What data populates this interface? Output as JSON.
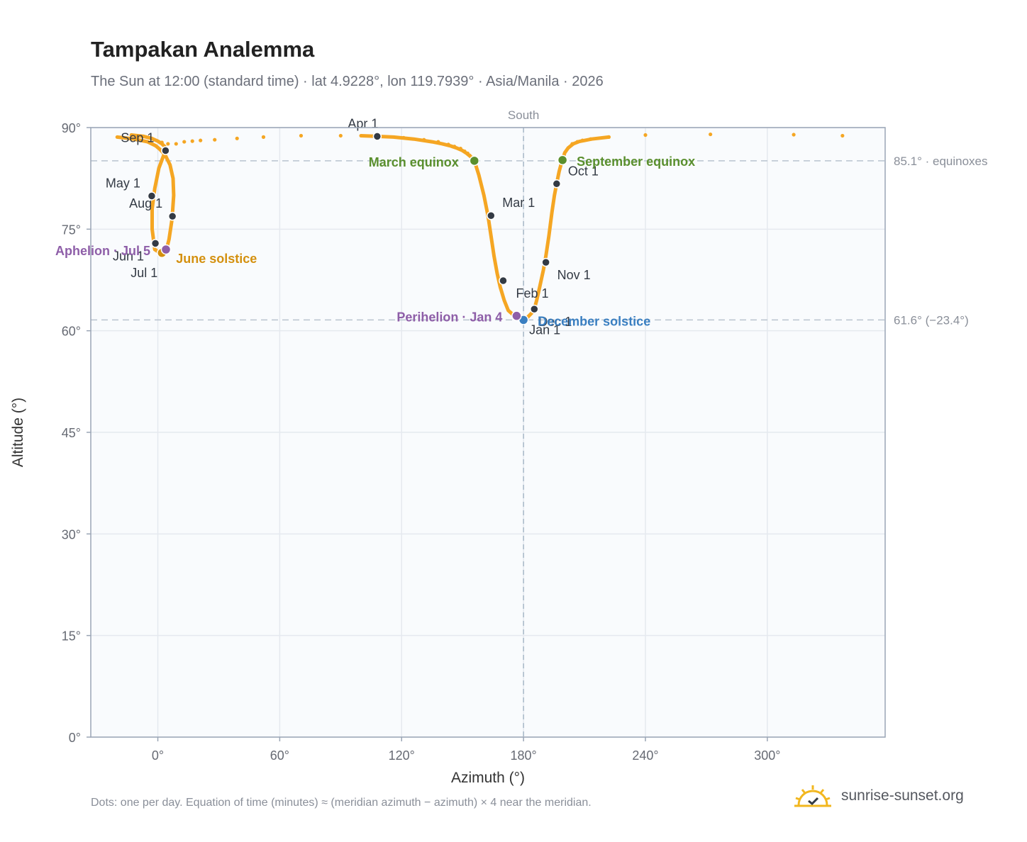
{
  "title": "Tampakan Analemma",
  "subtitle": "The Sun at 12:00 (standard time) · lat 4.9228°, lon 119.7939° · Asia/Manila · 2026",
  "footnote": "Dots: one per day. Equation of time (minutes) ≈ (meridian azimuth − azimuth) × 4 near the meridian.",
  "brand": {
    "name": "sunrise-sunset.org",
    "logo_icon": "sun-logo-icon"
  },
  "colors": {
    "analemma": "#f5a623",
    "month_dot": "#333a44",
    "equinox": "#5a8f2e",
    "june_solstice": "#d4900f",
    "december_solstice": "#3a7fc1",
    "apsis": "#8e5ea8",
    "plot_bg": "#f9fbfd",
    "grid": "#e5e9ef"
  },
  "chart_data": {
    "type": "scatter",
    "title": "Tampakan Analemma",
    "xlabel": "Azimuth (°)",
    "ylabel": "Altitude (°)",
    "xlim": [
      -33,
      358
    ],
    "ylim": [
      0,
      90
    ],
    "xticks": [
      0,
      60,
      120,
      180,
      240,
      300
    ],
    "xtick_labels": [
      "0°",
      "60°",
      "120°",
      "180°",
      "240°",
      "300°"
    ],
    "yticks": [
      0,
      15,
      30,
      45,
      60,
      75,
      90
    ],
    "ytick_labels": [
      "0°",
      "15°",
      "30°",
      "45°",
      "60°",
      "75°",
      "90°"
    ],
    "grid": true,
    "meridian": {
      "azimuth": 180,
      "label": "South"
    },
    "reference_lines": [
      {
        "altitude": 85.1,
        "label": "85.1° · equinoxes"
      },
      {
        "altitude": 61.6,
        "label": "61.6° (−23.4°)"
      }
    ],
    "analemma_path": [
      [
        180.0,
        61.6
      ],
      [
        182.0,
        62.0
      ],
      [
        184.0,
        62.6
      ],
      [
        185.3,
        63.2
      ],
      [
        186.5,
        64.5
      ],
      [
        188.0,
        66.5
      ],
      [
        189.8,
        69.0
      ],
      [
        191.0,
        71.0
      ],
      [
        192.5,
        74.0
      ],
      [
        194.0,
        77.5
      ],
      [
        195.2,
        80.0
      ],
      [
        196.3,
        81.7
      ],
      [
        197.5,
        83.5
      ],
      [
        198.5,
        84.6
      ],
      [
        199.2,
        85.2
      ],
      [
        200.3,
        86.3
      ],
      [
        202.0,
        87.0
      ],
      [
        204.5,
        87.6
      ],
      [
        207.5,
        87.95
      ],
      [
        210.0,
        88.1
      ],
      [
        213.5,
        88.3
      ],
      [
        222.0,
        88.6
      ],
      [
        240.0,
        88.9
      ],
      [
        272.0,
        89.0
      ],
      [
        313.0,
        88.95
      ],
      [
        337.0,
        88.8
      ],
      [
        357.0,
        88.6
      ],
      [
        -33.0,
        88.6
      ],
      [
        -13.0,
        88.9
      ],
      [
        -7.0,
        88.7
      ],
      [
        -3.0,
        88.4
      ],
      [
        0.0,
        88.0
      ],
      [
        2.0,
        87.6
      ],
      [
        3.4,
        87.2
      ],
      [
        3.8,
        86.8
      ],
      [
        3.0,
        86.0
      ],
      [
        0.5,
        84.0
      ],
      [
        -1.5,
        81.0
      ],
      [
        -2.8,
        78.0
      ],
      [
        -2.8,
        75.0
      ],
      [
        -1.5,
        72.0
      ],
      [
        0.5,
        71.6
      ],
      [
        2.0,
        71.5
      ],
      [
        4.0,
        71.7
      ],
      [
        5.5,
        73.5
      ],
      [
        7.0,
        76.5
      ],
      [
        7.8,
        80.0
      ],
      [
        7.5,
        82.5
      ],
      [
        6.0,
        84.5
      ],
      [
        3.5,
        86.0
      ],
      [
        1.0,
        86.8
      ],
      [
        -1.0,
        87.3
      ],
      [
        -5.0,
        87.9
      ],
      [
        -10.0,
        88.2
      ],
      [
        -14.0,
        88.4
      ],
      [
        -20.0,
        88.6
      ],
      [
        358.0,
        88.7
      ],
      [
        330.0,
        88.7
      ],
      [
        300.0,
        88.8
      ],
      [
        260.0,
        88.8
      ],
      [
        100.0,
        88.8
      ],
      [
        108.0,
        88.7
      ],
      [
        116.0,
        88.6
      ],
      [
        126.0,
        88.3
      ],
      [
        135.0,
        87.9
      ],
      [
        140.0,
        87.6
      ],
      [
        144.0,
        87.3
      ],
      [
        147.0,
        87.0
      ],
      [
        150.0,
        86.6
      ],
      [
        152.0,
        86.2
      ],
      [
        154.0,
        85.7
      ],
      [
        155.8,
        85.1
      ],
      [
        158.0,
        83.0
      ],
      [
        160.5,
        80.0
      ],
      [
        162.5,
        77.0
      ],
      [
        164.0,
        74.0
      ],
      [
        165.5,
        71.0
      ],
      [
        167.0,
        68.5
      ],
      [
        168.5,
        66.5
      ],
      [
        170.5,
        64.5
      ],
      [
        172.5,
        63.0
      ],
      [
        175.5,
        62.2
      ],
      [
        178.0,
        61.8
      ],
      [
        180.0,
        61.6
      ]
    ],
    "sparse_dots": [
      [
        -13,
        88.9
      ],
      [
        -7,
        88.7
      ],
      [
        -3,
        88.4
      ],
      [
        28,
        88.2
      ],
      [
        39,
        88.4
      ],
      [
        52,
        88.6
      ],
      [
        70.5,
        88.8
      ],
      [
        90,
        88.8
      ],
      [
        108,
        88.7
      ],
      [
        121,
        88.5
      ],
      [
        131,
        88.2
      ],
      [
        138,
        87.9
      ],
      [
        143,
        87.5
      ],
      [
        146,
        87.2
      ],
      [
        149,
        86.9
      ],
      [
        151,
        86.5
      ],
      [
        152.5,
        86.2
      ],
      [
        153.5,
        85.9
      ],
      [
        154.5,
        85.6
      ],
      [
        204,
        87.6
      ],
      [
        206.5,
        87.9
      ],
      [
        209,
        88.1
      ],
      [
        213,
        88.3
      ],
      [
        222,
        88.6
      ],
      [
        240,
        88.9
      ],
      [
        272,
        89.0
      ],
      [
        313,
        88.95
      ],
      [
        337,
        88.8
      ],
      [
        2,
        87.8
      ],
      [
        5,
        87.6
      ],
      [
        9,
        87.6
      ],
      [
        13,
        87.9
      ],
      [
        17,
        88.0
      ],
      [
        21,
        88.1
      ],
      [
        -10,
        88.6
      ]
    ],
    "month_markers": [
      {
        "label": "Jan 1",
        "az": 180.0,
        "alt": 61.6
      },
      {
        "label": "Feb 1",
        "az": 170.0,
        "alt": 67.4
      },
      {
        "label": "Mar 1",
        "az": 164.0,
        "alt": 77.0
      },
      {
        "label": "Apr 1",
        "az": 108.0,
        "alt": 88.7
      },
      {
        "label": "May 1",
        "az": -3.0,
        "alt": 79.9
      },
      {
        "label": "Jun 1",
        "az": -1.2,
        "alt": 72.9
      },
      {
        "label": "Jul 1",
        "az": 2.0,
        "alt": 71.5
      },
      {
        "label": "Aug 1",
        "az": 7.2,
        "alt": 76.9
      },
      {
        "label": "Sep 1",
        "az": 3.8,
        "alt": 86.6
      },
      {
        "label": "Oct 1",
        "az": 196.3,
        "alt": 81.7
      },
      {
        "label": "Nov 1",
        "az": 191.0,
        "alt": 70.1
      },
      {
        "label": "Dec 1",
        "az": 185.3,
        "alt": 63.2
      }
    ],
    "events": [
      {
        "label": "March equinox",
        "az": 155.8,
        "alt": 85.1,
        "color": "#5a8f2e",
        "anchor": "end"
      },
      {
        "label": "September equinox",
        "az": 199.2,
        "alt": 85.2,
        "color": "#5a8f2e",
        "anchor": "start"
      },
      {
        "label": "June solstice",
        "az": 2.0,
        "alt": 71.5,
        "color": "#d4900f",
        "anchor": "start"
      },
      {
        "label": "December solstice",
        "az": 180.0,
        "alt": 61.6,
        "color": "#3a7fc1",
        "anchor": "start"
      },
      {
        "label": "Aphelion · Jul 5",
        "az": 4.0,
        "alt": 72.0,
        "color": "#8e5ea8",
        "anchor": "end"
      },
      {
        "label": "Perihelion · Jan 4",
        "az": 176.6,
        "alt": 62.2,
        "color": "#8e5ea8",
        "anchor": "end"
      }
    ]
  }
}
